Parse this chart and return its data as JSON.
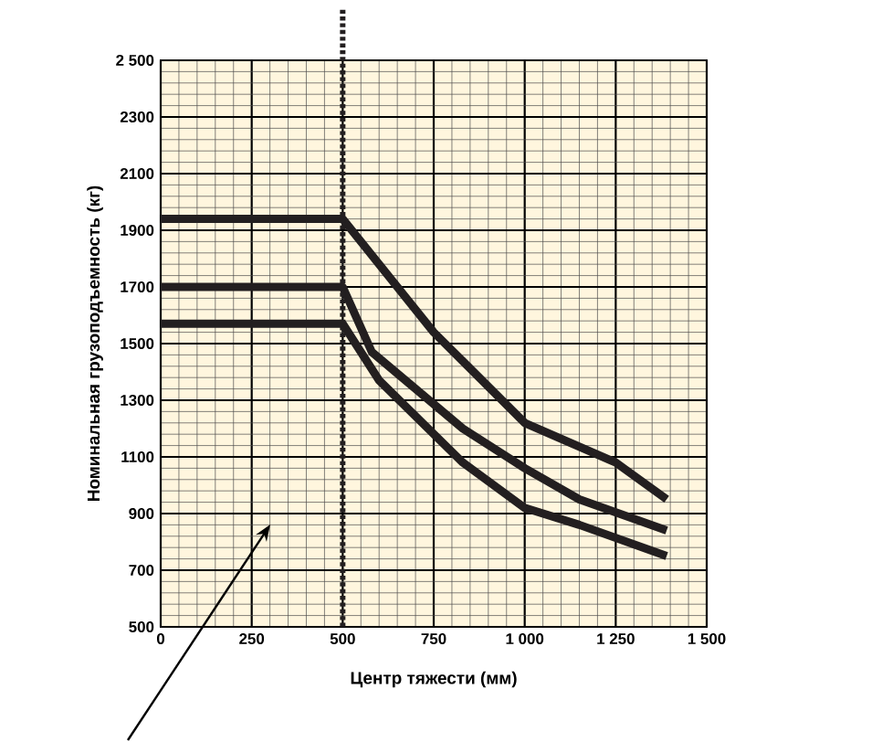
{
  "chart_data": {
    "type": "line",
    "xlabel": "Центр тяжести (мм)",
    "ylabel": "Номинальная грузоподъемность (кг)",
    "xlim": [
      0,
      1500
    ],
    "ylim": [
      500,
      2500
    ],
    "xticks": [
      0,
      250,
      500,
      750,
      {
        "value": 1000,
        "label": "1 000"
      },
      {
        "value": 1250,
        "label": "1 250"
      },
      {
        "value": 1500,
        "label": "1 500"
      }
    ],
    "yticks": [
      500,
      700,
      900,
      1100,
      1300,
      1500,
      1700,
      1900,
      2100,
      2300,
      {
        "value": 2500,
        "label": "2 500"
      }
    ],
    "grid": true,
    "marker": "none",
    "line_style": "solid",
    "series": [
      {
        "color": "#231f20",
        "x": [
          0,
          500,
          750,
          1000,
          1250,
          1390
        ],
        "values": [
          1940,
          1940,
          1540,
          1220,
          1080,
          950
        ]
      },
      {
        "color": "#231f20",
        "x": [
          0,
          500,
          580,
          830,
          1000,
          1150,
          1390
        ],
        "values": [
          1700,
          1700,
          1470,
          1200,
          1060,
          950,
          840
        ]
      },
      {
        "color": "#231f20",
        "x": [
          0,
          500,
          600,
          830,
          1000,
          1150,
          1390
        ],
        "values": [
          1570,
          1570,
          1370,
          1080,
          920,
          860,
          750
        ]
      }
    ],
    "ref_lines": [
      {
        "axis": "x",
        "value": 500,
        "color": "#231f20",
        "line_style": "dotted"
      }
    ]
  }
}
